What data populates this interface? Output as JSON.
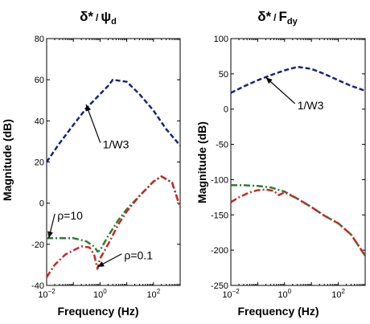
{
  "chart_data": [
    {
      "type": "line",
      "title": "δ* / ψd",
      "title_main": "δ*",
      "title_slash": "/",
      "title_den": "ψ",
      "title_sub": "d",
      "xlabel": "Frequency (Hz)",
      "ylabel": "Magnitude (dB)",
      "xscale": "log",
      "xlim": [
        0.01,
        1000
      ],
      "ylim": [
        -40,
        80
      ],
      "yticks": [
        "-40",
        "-20",
        "0",
        "20",
        "40",
        "60",
        "80"
      ],
      "xticks": [
        {
          "base": "10",
          "exp": "−2"
        },
        {
          "base": "10",
          "exp": "0"
        },
        {
          "base": "10",
          "exp": "2"
        }
      ],
      "grid": false,
      "annotations": [
        {
          "text": "1/W3",
          "x": 1.26,
          "y": 27,
          "arrow_to": [
            0.3,
            48
          ]
        },
        {
          "text": "ρ=10",
          "x": 0.025,
          "y": -7.5,
          "arrow_to": [
            0.012,
            -17
          ]
        },
        {
          "text": "ρ=0.1",
          "x": 8,
          "y": -27,
          "arrow_to": [
            0.8,
            -31
          ]
        }
      ],
      "series": [
        {
          "color": "#1a237e",
          "dash": "dashed",
          "x": [
            0.01,
            0.03,
            0.1,
            0.3,
            1,
            2,
            3,
            10,
            30,
            100,
            300,
            1000
          ],
          "y": [
            20,
            29,
            38,
            46,
            53,
            57,
            60,
            59,
            53,
            45,
            36,
            28
          ]
        },
        {
          "color": "#2e7d32",
          "dash": "dashdot",
          "x": [
            0.01,
            0.03,
            0.1,
            0.3,
            0.6,
            0.8,
            1,
            2,
            5,
            10,
            30,
            100,
            200,
            500,
            1000
          ],
          "y": [
            -17,
            -17,
            -17,
            -18.5,
            -21,
            -23.5,
            -23,
            -16,
            -8,
            -3,
            3.5,
            10.5,
            13,
            10,
            -2
          ]
        },
        {
          "color": "#c62828",
          "dash": "dashdot",
          "x": [
            0.01,
            0.02,
            0.05,
            0.1,
            0.2,
            0.4,
            0.6,
            0.8,
            1,
            2,
            5,
            10,
            30,
            100,
            200,
            500,
            1000
          ],
          "y": [
            -36,
            -30,
            -25,
            -23,
            -21,
            -21.5,
            -25,
            -32,
            -27,
            -20,
            -10,
            -4,
            3.5,
            10.5,
            13,
            10,
            -2
          ]
        }
      ]
    },
    {
      "type": "line",
      "title": "δ* / Fdy",
      "title_main": "δ*",
      "title_slash": "/",
      "title_den": "F",
      "title_sub": "dy",
      "xlabel": "Frequency (Hz)",
      "ylabel": "Magnitude (dB)",
      "xscale": "log",
      "xlim": [
        0.01,
        1000
      ],
      "ylim": [
        -250,
        100
      ],
      "yticks": [
        "-250",
        "-200",
        "-150",
        "-100",
        "-50",
        "0",
        "50",
        "100"
      ],
      "xticks": [
        {
          "base": "10",
          "exp": "−2"
        },
        {
          "base": "10",
          "exp": "0"
        },
        {
          "base": "10",
          "exp": "2"
        }
      ],
      "grid": false,
      "annotations": [
        {
          "text": "1/W3",
          "x": 3,
          "y": 1,
          "arrow_to": [
            0.2,
            45
          ]
        }
      ],
      "series": [
        {
          "color": "#1a237e",
          "dash": "dashed",
          "x": [
            0.01,
            0.03,
            0.1,
            0.3,
            1,
            2,
            3,
            10,
            30,
            100,
            300,
            1000
          ],
          "y": [
            23,
            32,
            41,
            48,
            55,
            58,
            60,
            57,
            50,
            41,
            33,
            26
          ]
        },
        {
          "color": "#2e7d32",
          "dash": "dashdot",
          "x": [
            0.01,
            0.03,
            0.1,
            0.3,
            1,
            3,
            10,
            30,
            100,
            300,
            1000
          ],
          "y": [
            -108,
            -108,
            -109,
            -111,
            -117,
            -127,
            -139,
            -151,
            -162,
            -178,
            -208
          ]
        },
        {
          "color": "#c62828",
          "dash": "dashdot",
          "x": [
            0.01,
            0.02,
            0.05,
            0.1,
            0.2,
            0.4,
            0.6,
            1,
            3,
            10,
            30,
            100,
            300,
            1000
          ],
          "y": [
            -132,
            -125,
            -118,
            -115,
            -114,
            -116,
            -122,
            -118,
            -127,
            -139,
            -151,
            -162,
            -178,
            -208
          ]
        }
      ]
    }
  ]
}
